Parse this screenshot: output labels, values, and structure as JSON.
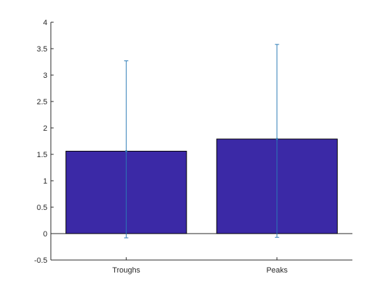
{
  "chart_data": {
    "type": "bar",
    "title": "",
    "xlabel": "",
    "ylabel": "",
    "categories": [
      "Troughs",
      "Peaks"
    ],
    "values": [
      1.56,
      1.79
    ],
    "error_bars": {
      "upper": [
        3.27,
        3.58
      ],
      "lower": [
        -0.08,
        -0.07
      ]
    },
    "ylim": [
      -0.5,
      4
    ],
    "yticks": [
      "-0.5",
      "0",
      "0.5",
      "1",
      "1.5",
      "2",
      "2.5",
      "3",
      "3.5",
      "4"
    ],
    "ytick_values": [
      -0.5,
      0,
      0.5,
      1,
      1.5,
      2,
      2.5,
      3,
      3.5,
      4
    ],
    "grid": false,
    "colors": {
      "bar": "#3b29a6",
      "bar_edge": "#000000",
      "error_bar": "#2a7ab5",
      "axis": "#262626"
    }
  }
}
